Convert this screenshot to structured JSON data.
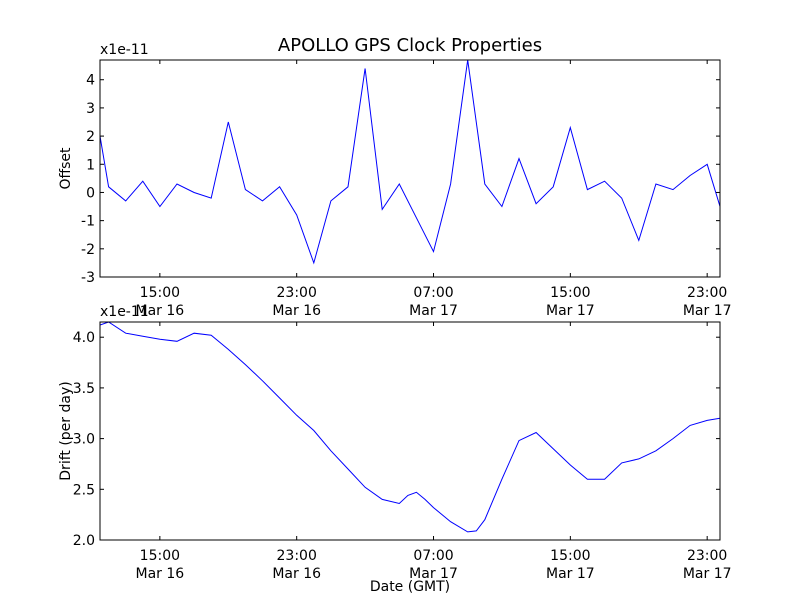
{
  "title": "APOLLO GPS Clock Properties",
  "chart_data": [
    {
      "type": "line",
      "ylabel": "Offset",
      "y_multiplier": "x1e-11",
      "ylim": [
        -3,
        4.7
      ],
      "yticks": [
        "-3",
        "-2",
        "-1",
        "0",
        "1",
        "2",
        "3",
        "4"
      ],
      "xlim": [
        "2024-03-16T11:30",
        "2024-03-17T23:45"
      ],
      "xticks": [
        {
          "time": "2024-03-16T15:00",
          "label": "15:00\nMar 16"
        },
        {
          "time": "2024-03-16T23:00",
          "label": "23:00\nMar 16"
        },
        {
          "time": "2024-03-17T07:00",
          "label": "07:00\nMar 17"
        },
        {
          "time": "2024-03-17T15:00",
          "label": "15:00\nMar 17"
        },
        {
          "time": "2024-03-17T23:00",
          "label": "23:00\nMar 17"
        }
      ],
      "x_tick_lines": [
        "15:00",
        "Mar 16",
        "23:00",
        "Mar 16",
        "07:00",
        "Mar 17",
        "15:00",
        "Mar 17",
        "23:00",
        "Mar 17"
      ],
      "series": [
        {
          "color": "#0000ff",
          "note": "noisy offset trace; envelope approx",
          "x": [
            "2024-03-16T11:30",
            "2024-03-16T12:00",
            "2024-03-16T13:00",
            "2024-03-16T14:00",
            "2024-03-16T15:00",
            "2024-03-16T16:00",
            "2024-03-16T17:00",
            "2024-03-16T18:00",
            "2024-03-16T19:00",
            "2024-03-16T20:00",
            "2024-03-16T21:00",
            "2024-03-16T22:00",
            "2024-03-16T23:00",
            "2024-03-17T00:00",
            "2024-03-17T01:00",
            "2024-03-17T02:00",
            "2024-03-17T03:00",
            "2024-03-17T04:00",
            "2024-03-17T05:00",
            "2024-03-17T06:00",
            "2024-03-17T07:00",
            "2024-03-17T08:00",
            "2024-03-17T09:00",
            "2024-03-17T10:00",
            "2024-03-17T11:00",
            "2024-03-17T12:00",
            "2024-03-17T13:00",
            "2024-03-17T14:00",
            "2024-03-17T15:00",
            "2024-03-17T16:00",
            "2024-03-17T17:00",
            "2024-03-17T18:00",
            "2024-03-17T19:00",
            "2024-03-17T20:00",
            "2024-03-17T21:00",
            "2024-03-17T22:00",
            "2024-03-17T23:00",
            "2024-03-17T23:45"
          ],
          "values": [
            2.0,
            0.2,
            -0.3,
            0.4,
            -0.5,
            0.3,
            0.0,
            -0.2,
            2.5,
            0.1,
            -0.3,
            0.2,
            -0.8,
            -2.5,
            -0.3,
            0.2,
            4.4,
            -0.6,
            0.3,
            -0.9,
            -2.1,
            0.3,
            4.7,
            0.3,
            -0.5,
            1.2,
            -0.4,
            0.2,
            2.3,
            0.1,
            0.4,
            -0.2,
            -1.7,
            0.3,
            0.1,
            0.6,
            1.0,
            -0.5
          ]
        }
      ]
    },
    {
      "type": "line",
      "ylabel": "Drift (per day)",
      "xlabel": "Date (GMT)",
      "y_multiplier": "x1e-11",
      "ylim": [
        2.0,
        4.15
      ],
      "yticks": [
        "2.0",
        "2.5",
        "3.0",
        "3.5",
        "4.0"
      ],
      "xlim": [
        "2024-03-16T11:30",
        "2024-03-17T23:45"
      ],
      "xticks": [
        {
          "time": "2024-03-16T15:00",
          "label": "15:00\nMar 16"
        },
        {
          "time": "2024-03-16T23:00",
          "label": "23:00\nMar 16"
        },
        {
          "time": "2024-03-17T07:00",
          "label": "07:00\nMar 17"
        },
        {
          "time": "2024-03-17T15:00",
          "label": "15:00\nMar 17"
        },
        {
          "time": "2024-03-17T23:00",
          "label": "23:00\nMar 17"
        }
      ],
      "x_tick_lines": [
        "15:00",
        "Mar 16",
        "23:00",
        "Mar 16",
        "07:00",
        "Mar 17",
        "15:00",
        "Mar 17",
        "23:00",
        "Mar 17"
      ],
      "series": [
        {
          "color": "#0000ff",
          "x": [
            "2024-03-16T11:30",
            "2024-03-16T12:00",
            "2024-03-16T13:00",
            "2024-03-16T14:00",
            "2024-03-16T15:00",
            "2024-03-16T16:00",
            "2024-03-16T17:00",
            "2024-03-16T18:00",
            "2024-03-16T18:30",
            "2024-03-16T19:00",
            "2024-03-16T20:00",
            "2024-03-16T21:00",
            "2024-03-16T22:00",
            "2024-03-16T23:00",
            "2024-03-17T00:00",
            "2024-03-17T01:00",
            "2024-03-17T02:00",
            "2024-03-17T03:00",
            "2024-03-17T04:00",
            "2024-03-17T05:00",
            "2024-03-17T05:30",
            "2024-03-17T06:00",
            "2024-03-17T06:30",
            "2024-03-17T07:00",
            "2024-03-17T08:00",
            "2024-03-17T09:00",
            "2024-03-17T09:30",
            "2024-03-17T10:00",
            "2024-03-17T11:00",
            "2024-03-17T12:00",
            "2024-03-17T13:00",
            "2024-03-17T14:00",
            "2024-03-17T15:00",
            "2024-03-17T16:00",
            "2024-03-17T17:00",
            "2024-03-17T18:00",
            "2024-03-17T19:00",
            "2024-03-17T20:00",
            "2024-03-17T21:00",
            "2024-03-17T22:00",
            "2024-03-17T23:00",
            "2024-03-17T23:45"
          ],
          "values": [
            4.12,
            4.15,
            4.04,
            4.01,
            3.98,
            3.96,
            4.04,
            4.02,
            3.95,
            3.88,
            3.73,
            3.57,
            3.4,
            3.23,
            3.08,
            2.88,
            2.7,
            2.52,
            2.4,
            2.36,
            2.44,
            2.47,
            2.4,
            2.32,
            2.18,
            2.08,
            2.09,
            2.2,
            2.6,
            2.98,
            3.06,
            2.9,
            2.74,
            2.6,
            2.6,
            2.76,
            2.8,
            2.88,
            3.0,
            3.13,
            3.18,
            3.2
          ]
        }
      ]
    }
  ]
}
